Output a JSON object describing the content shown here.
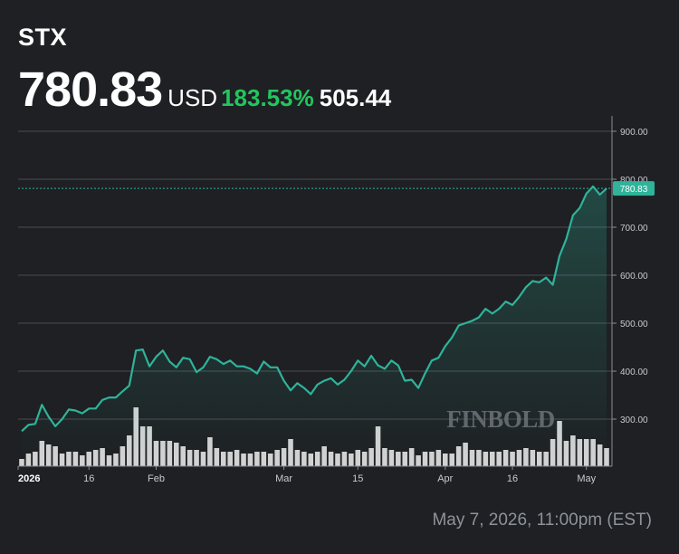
{
  "header": {
    "ticker": "STX",
    "price": "780.83",
    "currency": "USD",
    "change_percent": "183.53%",
    "change_value": "505.44"
  },
  "footer": {
    "timestamp": "May 7, 2026, 11:00pm (EST)"
  },
  "watermark": "FINBOLD",
  "colors": {
    "background": "#1e2023",
    "line": "#2fb39a",
    "positive": "#23c55e",
    "grid": "#4a4d52",
    "volume": "#d2d2d2"
  },
  "chart_data": {
    "type": "area",
    "y_range": [
      200,
      930
    ],
    "grid": true,
    "current_value": 780.83,
    "current_value_label": "780.83",
    "y_ticks": [
      {
        "value": 900,
        "label": "900.00"
      },
      {
        "value": 800,
        "label": "800.00"
      },
      {
        "value": 700,
        "label": "700.00"
      },
      {
        "value": 600,
        "label": "600.00"
      },
      {
        "value": 500,
        "label": "500.00"
      },
      {
        "value": 400,
        "label": "400.00"
      },
      {
        "value": 300,
        "label": "300.00"
      }
    ],
    "x_ticks": [
      {
        "index": 0,
        "label": "2026",
        "bold": true
      },
      {
        "index": 10,
        "label": "16"
      },
      {
        "index": 20,
        "label": "Feb"
      },
      {
        "index": 39,
        "label": "Mar"
      },
      {
        "index": 50,
        "label": "15"
      },
      {
        "index": 63,
        "label": "Apr"
      },
      {
        "index": 73,
        "label": "16"
      },
      {
        "index": 84,
        "label": "May"
      }
    ],
    "price": [
      275,
      288,
      290,
      330,
      305,
      285,
      300,
      320,
      318,
      312,
      322,
      322,
      340,
      345,
      345,
      358,
      370,
      443,
      445,
      410,
      430,
      443,
      420,
      408,
      428,
      425,
      398,
      408,
      430,
      425,
      415,
      422,
      410,
      410,
      405,
      395,
      420,
      408,
      408,
      380,
      360,
      375,
      365,
      352,
      372,
      380,
      385,
      372,
      382,
      400,
      422,
      410,
      432,
      412,
      405,
      422,
      412,
      380,
      382,
      365,
      395,
      422,
      428,
      452,
      470,
      495,
      500,
      505,
      512,
      530,
      520,
      530,
      545,
      538,
      555,
      575,
      588,
      585,
      595,
      580,
      640,
      675,
      725,
      740,
      770,
      785,
      768,
      780.83
    ],
    "volume": [
      8,
      14,
      16,
      28,
      24,
      22,
      14,
      16,
      16,
      12,
      16,
      18,
      20,
      12,
      14,
      22,
      34,
      65,
      44,
      44,
      28,
      28,
      28,
      26,
      22,
      18,
      18,
      16,
      32,
      20,
      16,
      16,
      18,
      14,
      14,
      16,
      16,
      14,
      18,
      20,
      30,
      18,
      16,
      14,
      16,
      22,
      16,
      14,
      16,
      14,
      18,
      16,
      20,
      44,
      20,
      18,
      16,
      16,
      20,
      12,
      16,
      16,
      18,
      14,
      14,
      22,
      26,
      18,
      18,
      16,
      16,
      16,
      18,
      16,
      18,
      20,
      18,
      16,
      16,
      30,
      50,
      28,
      34,
      30,
      30,
      30,
      24,
      20
    ]
  }
}
